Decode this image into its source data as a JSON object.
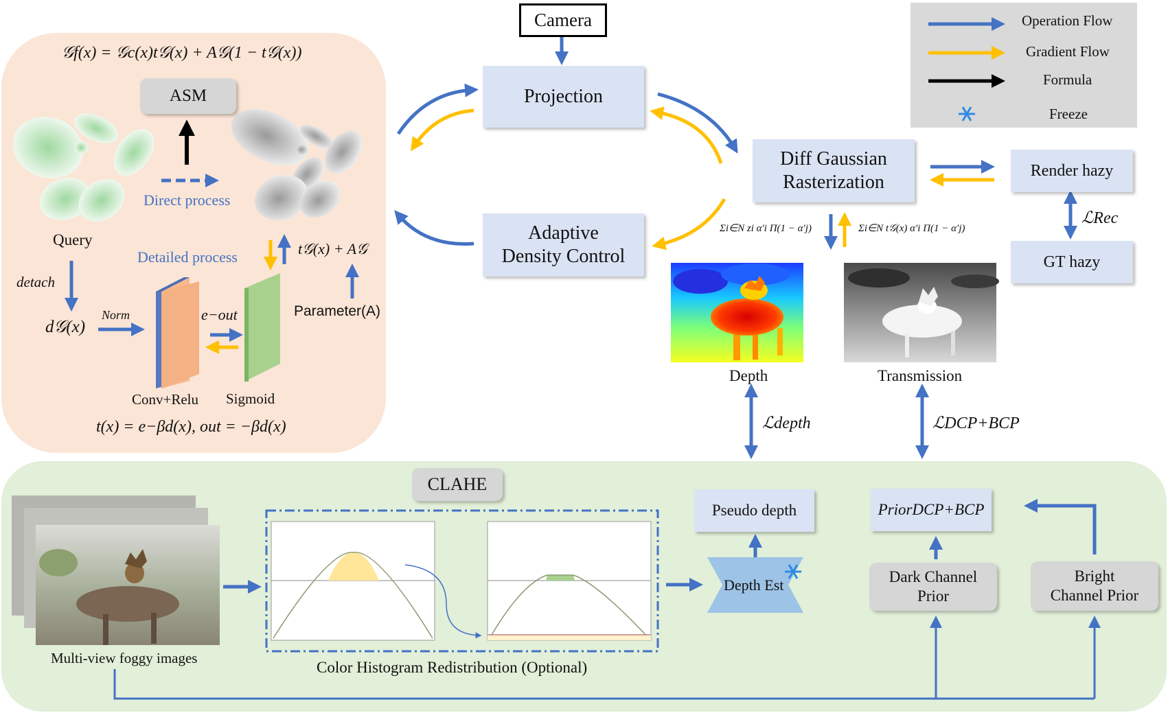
{
  "legend": {
    "operation_flow": "Operation Flow",
    "gradient_flow": "Gradient Flow",
    "formula": "Formula",
    "freeze": "Freeze"
  },
  "colors": {
    "blue": "#4472c4",
    "yellow": "#ffc000",
    "left_panel": "#fbe5d6",
    "bottom_panel": "#e2efd9",
    "box": "#dae3f3"
  },
  "camera": "Camera",
  "projection": "Projection",
  "diff_gaussian": [
    "Diff Gaussian",
    "Rasterization"
  ],
  "adaptive_density": [
    "Adaptive",
    "Density Control"
  ],
  "render_hazy": "Render hazy",
  "gt_hazy": "GT hazy",
  "loss_rec": "ℒRec",
  "depth_label": "Depth",
  "transmission_label": "Transmission",
  "loss_depth": "ℒdepth",
  "loss_dcp_bcp": "ℒDCP+BCP",
  "formula_depth": "Σi∈N zi α′i Π(1 − α′j)",
  "formula_trans": "Σi∈N t𝒢(x) α′i Π(1 − α′j)",
  "left_panel": {
    "top_formula": "𝒢f(x) = 𝒢c(x)t𝒢(x) + A𝒢(1 − t𝒢(x))",
    "asm": "ASM",
    "direct_process": "Direct process",
    "query": "Query",
    "detailed_process": "Detailed process",
    "detach": "detach",
    "d_g": "d𝒢(x)",
    "norm": "Norm",
    "e_out": "e−out",
    "t_plus_a": "t𝒢(x) + A𝒢",
    "parameter": "Parameter(A)",
    "conv_relu": "Conv+Relu",
    "sigmoid": "Sigmoid",
    "bottom_formula": "t(x) = e−βd(x), out = −βd(x)"
  },
  "bottom_panel": {
    "clahe": "CLAHE",
    "multiview": "Multi-view foggy images",
    "color_hist": "Color Histogram Redistribution (Optional)",
    "pseudo_depth": "Pseudo depth",
    "depth_est": "Depth Est",
    "prior": "PriorDCP+BCP",
    "dark_channel": [
      "Dark Channel",
      "Prior"
    ],
    "bright_channel": [
      "Bright",
      "Channel Prior"
    ]
  }
}
